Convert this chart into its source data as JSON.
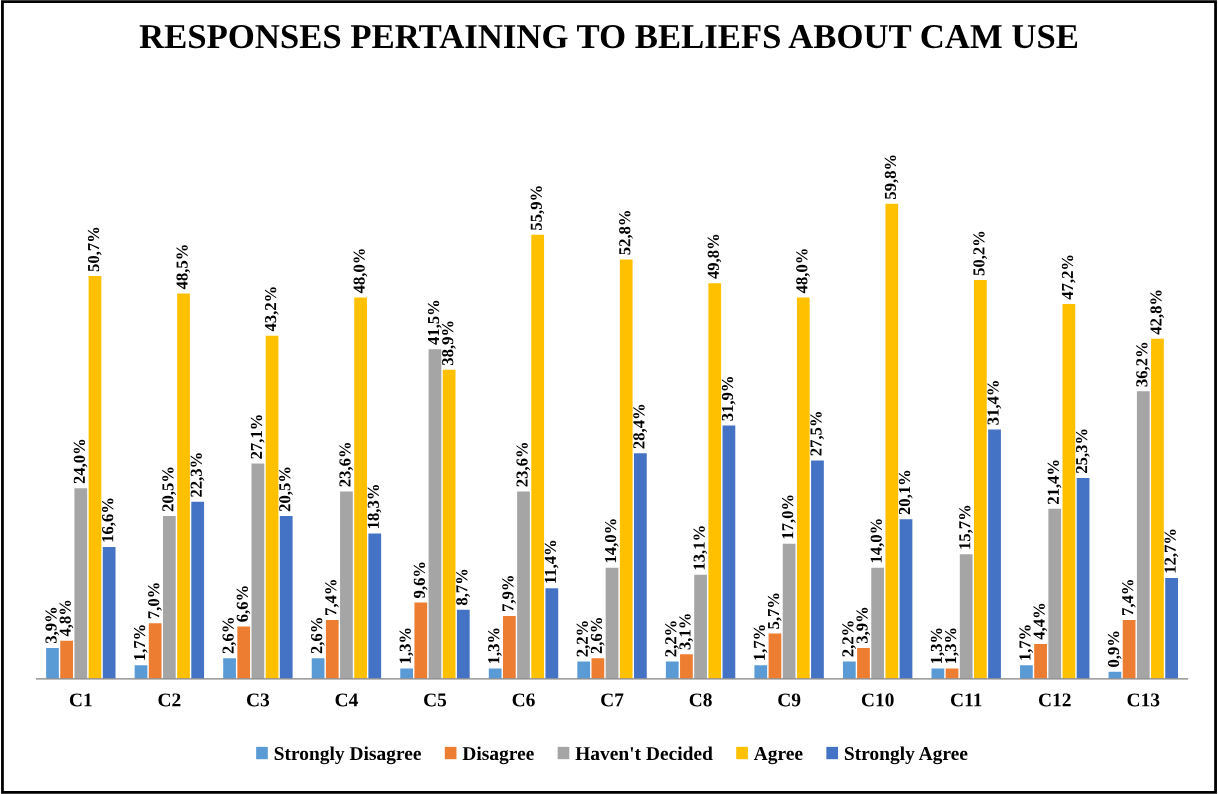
{
  "chart_data": {
    "type": "bar",
    "title": "RESPONSES PERTAINING TO BELIEFS ABOUT CAM USE",
    "categories": [
      "C1",
      "C2",
      "C3",
      "C4",
      "C5",
      "C6",
      "C7",
      "C8",
      "C9",
      "C10",
      "C11",
      "C12",
      "C13"
    ],
    "series": [
      {
        "name": "Strongly Disagree",
        "color": "#5b9bd5",
        "values": [
          3.9,
          1.7,
          2.6,
          2.6,
          1.3,
          1.3,
          2.2,
          2.2,
          1.7,
          2.2,
          1.3,
          1.7,
          0.9
        ],
        "value_labels": [
          "3,9%",
          "1,7%",
          "2,6%",
          "2,6%",
          "1,3%",
          "1,3%",
          "2,2%",
          "2,2%",
          "1,7%",
          "2,2%",
          "1,3%",
          "1,7%",
          "0,9%"
        ]
      },
      {
        "name": "Disagree",
        "color": "#ed7d31",
        "values": [
          4.8,
          7.0,
          6.6,
          7.4,
          9.6,
          7.9,
          2.6,
          3.1,
          5.7,
          3.9,
          1.3,
          4.4,
          7.4
        ],
        "value_labels": [
          "4,8%",
          "7,0%",
          "6,6%",
          "7,4%",
          "9,6%",
          "7,9%",
          "2,6%",
          "3,1%",
          "5,7%",
          "3,9%",
          "1,3%",
          "4,4%",
          "7,4%"
        ]
      },
      {
        "name": "Haven't Decided",
        "color": "#a5a5a5",
        "values": [
          24.0,
          20.5,
          27.1,
          23.6,
          41.5,
          23.6,
          14.0,
          13.1,
          17.0,
          14.0,
          15.7,
          21.4,
          36.2
        ],
        "value_labels": [
          "24,0%",
          "20,5%",
          "27,1%",
          "23,6%",
          "41,5%",
          "23,6%",
          "14,0%",
          "13,1%",
          "17,0%",
          "14,0%",
          "15,7%",
          "21,4%",
          "36,2%"
        ]
      },
      {
        "name": "Agree",
        "color": "#ffc000",
        "values": [
          50.7,
          48.5,
          43.2,
          48.0,
          38.9,
          55.9,
          52.8,
          49.8,
          48.0,
          59.8,
          50.2,
          47.2,
          42.8
        ],
        "value_labels": [
          "50,7%",
          "48,5%",
          "43,2%",
          "48,0%",
          "38,9%",
          "55,9%",
          "52,8%",
          "49,8%",
          "48,0%",
          "59,8%",
          "50,2%",
          "47,2%",
          "42,8%"
        ]
      },
      {
        "name": "Strongly Agree",
        "color": "#4472c4",
        "values": [
          16.6,
          22.3,
          20.5,
          18.3,
          8.7,
          11.4,
          28.4,
          31.9,
          27.5,
          20.1,
          31.4,
          25.3,
          12.7
        ],
        "value_labels": [
          "16,6%",
          "22,3%",
          "20,5%",
          "18,3%",
          "8,7%",
          "11,4%",
          "28,4%",
          "31,9%",
          "27,5%",
          "20,1%",
          "31,4%",
          "25,3%",
          "12,7%"
        ]
      }
    ],
    "grid": false,
    "legend": "bottom"
  }
}
